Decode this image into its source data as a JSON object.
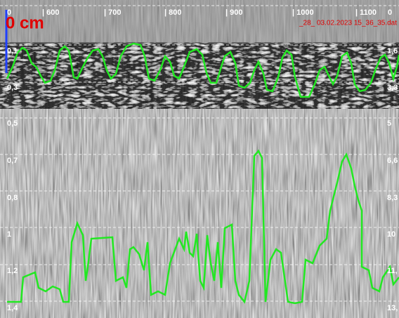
{
  "title": "0 cm",
  "file": "_28_  03.02.2023  15_36_35.dat",
  "top_scale": [
    "0",
    "| 600",
    "| 700",
    "| 800",
    "| 900",
    "| 1000",
    "| 1100",
    "0"
  ],
  "left_scale": [
    "0,1",
    "0,3",
    "0,5",
    "0,7",
    "0,8",
    "1",
    "1,2",
    "1,4"
  ],
  "right_scale": [
    "1,6",
    "3,3",
    "5",
    "6,6",
    "8,3",
    "10",
    "11,",
    "13,"
  ]
}
